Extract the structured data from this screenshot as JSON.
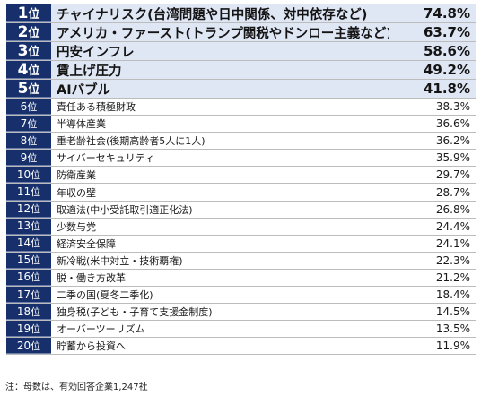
{
  "chart_data": {
    "type": "table",
    "rank_suffix": "位",
    "categories": [
      "チャイナリスク(台湾問題や日中関係、対中依存など)",
      "アメリカ・ファースト(トランプ関税やドンロー主義など)",
      "円安インフレ",
      "賃上げ圧力",
      "AIバブル",
      "責任ある積極財政",
      "半導体産業",
      "重老齢社会(後期高齢者5人に1人)",
      "サイバーセキュリティ",
      "防衛産業",
      "年収の壁",
      "取適法(中小受託取引適正化法)",
      "少数与党",
      "経済安全保障",
      "新冷戦(米中対立・技術覇権)",
      "脱・働き方改革",
      "二季の国(夏冬二季化)",
      "独身税(子ども・子育て支援金制度)",
      "オーバーツーリズム",
      "貯蓄から投資へ"
    ],
    "values": [
      74.8,
      63.7,
      58.6,
      49.2,
      41.8,
      38.3,
      36.6,
      36.2,
      35.9,
      29.7,
      28.7,
      26.8,
      24.4,
      24.1,
      22.3,
      21.2,
      18.4,
      14.5,
      13.5,
      11.9
    ],
    "value_labels": [
      "74.8%",
      "63.7%",
      "58.6%",
      "49.2%",
      "41.8%",
      "38.3%",
      "36.6%",
      "36.2%",
      "35.9%",
      "29.7%",
      "28.7%",
      "26.8%",
      "24.4%",
      "24.1%",
      "22.3%",
      "21.2%",
      "18.4%",
      "14.5%",
      "13.5%",
      "11.9%"
    ],
    "highlight_top": 5,
    "unit": "%",
    "note": "注：母数は、有効回答企業1,247社"
  },
  "colors": {
    "rank_bg": "#17306b",
    "rank_text": "#ffffff",
    "highlight_bg": "#dfe6f4",
    "row_bg": "#ffffff",
    "border": "#bcbcbc"
  }
}
